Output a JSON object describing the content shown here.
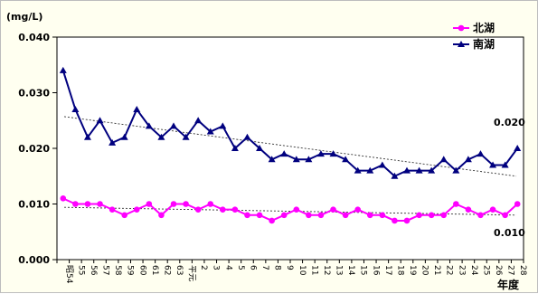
{
  "chart_data": {
    "type": "line",
    "unit_label": "(mg/L)",
    "xlabel": "年度",
    "ylim": [
      0,
      0.04
    ],
    "yticks": [
      "0.000",
      "0.010",
      "0.020",
      "0.030",
      "0.040"
    ],
    "x": [
      "昭54",
      "55",
      "56",
      "57",
      "58",
      "59",
      "60",
      "61",
      "62",
      "63",
      "平元",
      "2",
      "3",
      "4",
      "5",
      "6",
      "7",
      "8",
      "9",
      "10",
      "11",
      "12",
      "13",
      "14",
      "15",
      "16",
      "17",
      "18",
      "19",
      "20",
      "21",
      "22",
      "23",
      "24",
      "25",
      "26",
      "27",
      "28"
    ],
    "legend_position": "top-right",
    "series": [
      {
        "name": "北湖",
        "color": "#ff00ff",
        "marker": "circle",
        "values": [
          0.011,
          0.01,
          0.01,
          0.01,
          0.009,
          0.008,
          0.009,
          0.01,
          0.008,
          0.01,
          0.01,
          0.009,
          0.01,
          0.009,
          0.009,
          0.008,
          0.008,
          0.007,
          0.008,
          0.009,
          0.008,
          0.008,
          0.009,
          0.008,
          0.009,
          0.008,
          0.008,
          0.007,
          0.007,
          0.008,
          0.008,
          0.008,
          0.01,
          0.009,
          0.008,
          0.009,
          0.008,
          0.01
        ]
      },
      {
        "name": "南湖",
        "color": "#00007f",
        "marker": "triangle",
        "values": [
          0.034,
          0.027,
          0.022,
          0.025,
          0.021,
          0.022,
          0.027,
          0.024,
          0.022,
          0.024,
          0.022,
          0.025,
          0.023,
          0.024,
          0.02,
          0.022,
          0.02,
          0.018,
          0.019,
          0.018,
          0.018,
          0.019,
          0.019,
          0.018,
          0.016,
          0.016,
          0.017,
          0.015,
          0.016,
          0.016,
          0.016,
          0.018,
          0.016,
          0.018,
          0.019,
          0.017,
          0.017,
          0.02
        ]
      }
    ],
    "trendlines": [
      {
        "series": "南湖",
        "start": 0.0257,
        "end": 0.015
      },
      {
        "series": "北湖",
        "start": 0.0094,
        "end": 0.008
      }
    ],
    "annotations": [
      "0.020",
      "0.010"
    ]
  }
}
